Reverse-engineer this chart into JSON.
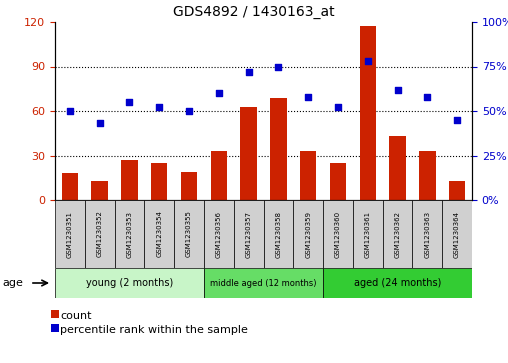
{
  "title": "GDS4892 / 1430163_at",
  "samples": [
    "GSM1230351",
    "GSM1230352",
    "GSM1230353",
    "GSM1230354",
    "GSM1230355",
    "GSM1230356",
    "GSM1230357",
    "GSM1230358",
    "GSM1230359",
    "GSM1230360",
    "GSM1230361",
    "GSM1230362",
    "GSM1230363",
    "GSM1230364"
  ],
  "counts": [
    18,
    13,
    27,
    25,
    19,
    33,
    63,
    69,
    33,
    25,
    117,
    43,
    33,
    13
  ],
  "percentile_ranks": [
    50,
    43,
    55,
    52,
    50,
    60,
    72,
    75,
    58,
    52,
    78,
    62,
    58,
    45
  ],
  "groups": [
    {
      "label": "young (2 months)",
      "start": 0,
      "end": 5
    },
    {
      "label": "middle aged (12 months)",
      "start": 5,
      "end": 9
    },
    {
      "label": "aged (24 months)",
      "start": 9,
      "end": 14
    }
  ],
  "group_colors": [
    "#c8f5c8",
    "#66dd66",
    "#33cc33"
  ],
  "bar_color": "#CC2200",
  "dot_color": "#0000CC",
  "left_ylim": [
    0,
    120
  ],
  "right_ylim": [
    0,
    100
  ],
  "left_yticks": [
    0,
    30,
    60,
    90,
    120
  ],
  "right_yticks": [
    0,
    25,
    50,
    75,
    100
  ],
  "right_yticklabels": [
    "0%",
    "25%",
    "50%",
    "75%",
    "100%"
  ],
  "legend_count_label": "count",
  "legend_pct_label": "percentile rank within the sample",
  "age_label": "age",
  "sample_box_color": "#D0D0D0",
  "background_color": "#ffffff"
}
